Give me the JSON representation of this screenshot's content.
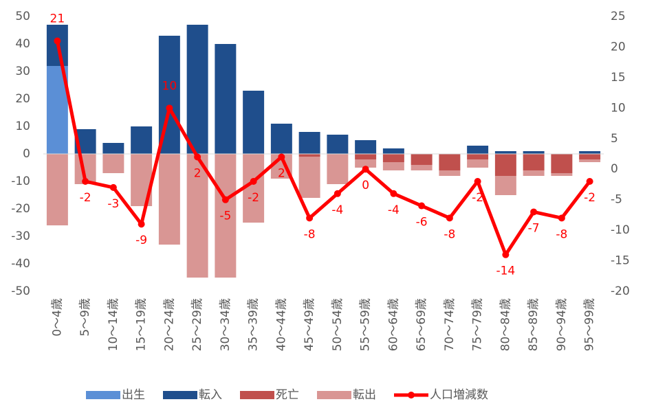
{
  "chart_data": {
    "type": "bar",
    "stacked": true,
    "grid": false,
    "legend": "bottom",
    "categories": [
      "0～4歳",
      "5～9歳",
      "10～14歳",
      "15～19歳",
      "20～24歳",
      "25～29歳",
      "30～34歳",
      "35～39歳",
      "40～44歳",
      "45～49歳",
      "50～54歳",
      "55～59歳",
      "60～64歳",
      "65～69歳",
      "70～74歳",
      "75～79歳",
      "80～84歳",
      "85～89歳",
      "90～94歳",
      "95～99歳"
    ],
    "series": [
      {
        "name": "出生",
        "color": "#5b8fd6",
        "values": [
          32,
          0,
          0,
          0,
          0,
          0,
          0,
          0,
          0,
          0,
          0,
          0,
          0,
          0,
          0,
          0,
          0,
          0,
          0,
          0
        ]
      },
      {
        "name": "転入",
        "color": "#1f4e8c",
        "values": [
          15,
          9,
          4,
          10,
          43,
          47,
          40,
          23,
          11,
          8,
          7,
          5,
          2,
          0,
          0,
          3,
          1,
          1,
          0,
          1
        ]
      },
      {
        "name": "死亡",
        "color": "#c0504d",
        "values": [
          0,
          0,
          0,
          0,
          0,
          0,
          0,
          0,
          0,
          -1,
          0,
          -2,
          -3,
          -4,
          -6,
          -2,
          -8,
          -6,
          -7,
          -2
        ]
      },
      {
        "name": "転出",
        "color": "#d99694",
        "values": [
          -26,
          -11,
          -7,
          -19,
          -33,
          -45,
          -45,
          -25,
          -9,
          -15,
          -11,
          -3,
          -3,
          -2,
          -2,
          -3,
          -7,
          -2,
          -1,
          -1
        ]
      },
      {
        "name": "人口増減数",
        "color": "#ff0000",
        "type": "line",
        "axis": "y2",
        "values": [
          21,
          -2,
          -3,
          -9,
          10,
          2,
          -5,
          -2,
          2,
          -8,
          -4,
          0,
          -4,
          -6,
          -8,
          -2,
          -14,
          -7,
          -8,
          -2
        ]
      }
    ],
    "ylim": [
      -50,
      50
    ],
    "yticks": [
      -50,
      -40,
      -30,
      -20,
      -10,
      0,
      10,
      20,
      30,
      40,
      50
    ],
    "y2lim": [
      -20,
      25
    ],
    "y2ticks": [
      -20,
      -15,
      -10,
      -5,
      0,
      5,
      10,
      15,
      20,
      25
    ]
  }
}
